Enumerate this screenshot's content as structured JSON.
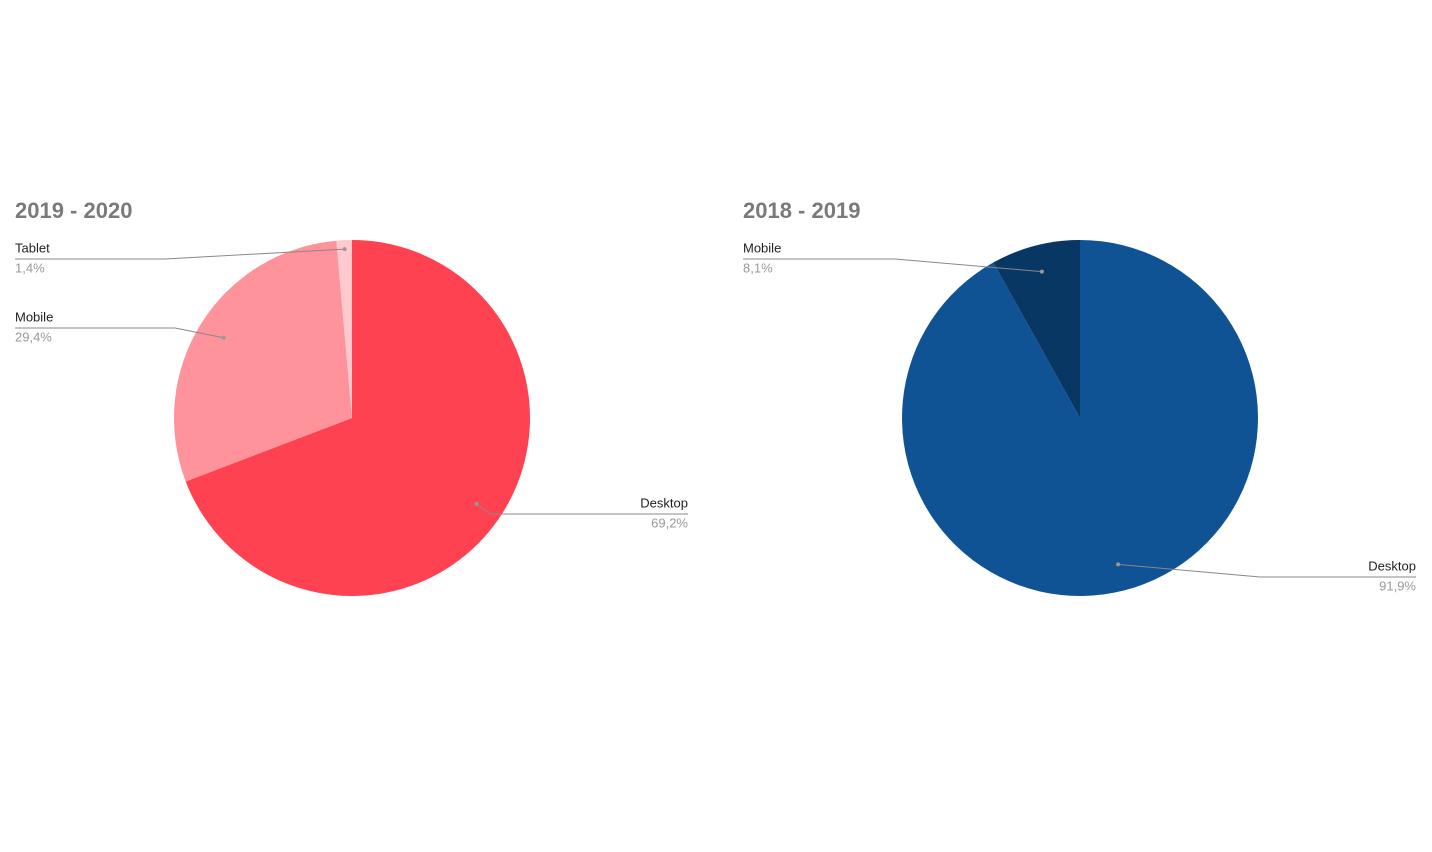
{
  "chart_data": [
    {
      "type": "pie",
      "title": "2019 - 2020",
      "categories": [
        "Desktop",
        "Mobile",
        "Tablet"
      ],
      "values": [
        69.2,
        29.4,
        1.4
      ],
      "value_labels": [
        "69,2%",
        "29,4%",
        "1,4%"
      ],
      "colors": [
        "#ff4252",
        "#ff939b",
        "#ffc9cd"
      ]
    },
    {
      "type": "pie",
      "title": "2018 - 2019",
      "categories": [
        "Desktop",
        "Mobile"
      ],
      "values": [
        91.9,
        8.1
      ],
      "value_labels": [
        "91,9%",
        "8,1%"
      ],
      "colors": [
        "#0f5395",
        "#083764"
      ]
    }
  ]
}
